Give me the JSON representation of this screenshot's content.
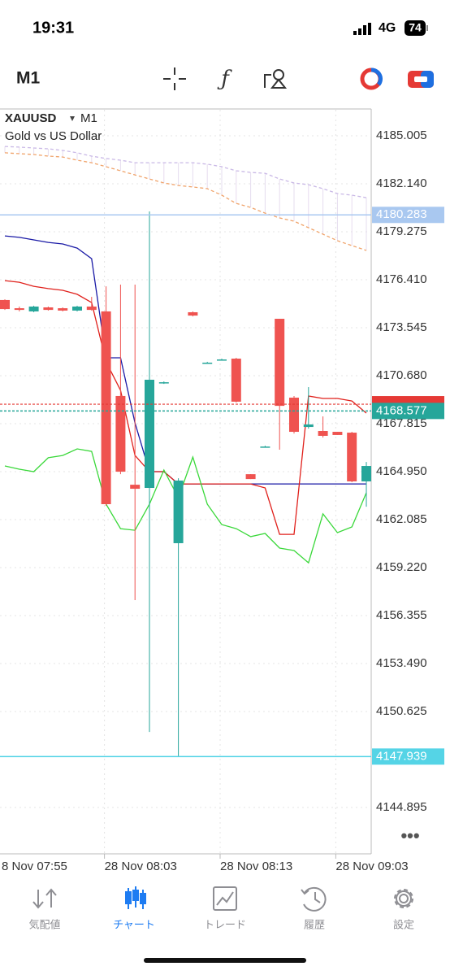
{
  "status_bar": {
    "time": "19:31",
    "network": "4G",
    "battery": "74"
  },
  "toolbar": {
    "timeframe": "M1"
  },
  "chart_data": {
    "type": "candlestick",
    "symbol": "XAUUSD",
    "timeframe": "M1",
    "description": "Gold vs US Dollar",
    "categories": [
      null,
      null,
      null,
      null,
      null,
      null,
      null,
      "28 Nov 08:03",
      null,
      null,
      null,
      null,
      null,
      null,
      null,
      "28 Nov 08:13",
      null,
      null,
      null,
      null,
      null,
      null,
      null,
      "28 Nov 09:03",
      null,
      null
    ],
    "offscreen_label": "8 Nov 07:55",
    "open": [
      4175.2,
      4174.71,
      4174.52,
      4174.76,
      4174.71,
      4174.57,
      4174.81,
      4174.52,
      4169.47,
      4164.17,
      4163.98,
      4170.24,
      4160.68,
      4174.47,
      4171.46,
      4171.6,
      4171.7,
      4164.8,
      4166.41,
      4174.08,
      4169.37,
      4167.62,
      4167.38,
      4167.33,
      4167.28,
      4164.37
    ],
    "high": [
      4175.24,
      4174.81,
      4174.86,
      4174.81,
      4174.76,
      4174.86,
      4175.39,
      4176.02,
      4176.12,
      4176.12,
      4180.49,
      4170.34,
      4164.56,
      4174.52,
      4171.51,
      4171.7,
      4171.75,
      4164.8,
      4166.5,
      4174.08,
      4169.47,
      4170.0,
      4168.25,
      4167.33,
      4167.33,
      4165.53
    ],
    "low": [
      4174.61,
      4174.52,
      4174.47,
      4174.57,
      4174.52,
      4174.52,
      4174.57,
      4162.91,
      4164.8,
      4157.28,
      4149.41,
      4170.19,
      4147.95,
      4174.22,
      4171.41,
      4171.6,
      4169.08,
      4164.51,
      4166.41,
      4166.26,
      4167.23,
      4167.52,
      4166.99,
      4167.14,
      4164.32,
      4162.86
    ],
    "close": [
      4174.66,
      4174.61,
      4174.81,
      4174.61,
      4174.57,
      4174.81,
      4174.61,
      4163.01,
      4164.95,
      4163.93,
      4170.44,
      4170.29,
      4164.42,
      4174.27,
      4171.46,
      4171.65,
      4169.13,
      4164.51,
      4166.45,
      4168.88,
      4167.33,
      4167.77,
      4167.09,
      4167.14,
      4164.37,
      4165.29
    ],
    "up_color": "#26a69a",
    "down_color": "#ef5350",
    "lines": [
      {
        "color": "#f0a36a",
        "dash": true,
        "values": [
          4183.99,
          4183.94,
          4183.89,
          4183.79,
          4183.74,
          4183.55,
          4183.4,
          4183.16,
          4182.92,
          4182.67,
          4182.43,
          4182.19,
          4182.04,
          4181.95,
          4181.85,
          4181.46,
          4180.97,
          4180.73,
          4180.39,
          4180.1,
          4179.91,
          4179.52,
          4179.13,
          4178.74,
          4178.45,
          4178.16
        ]
      },
      {
        "color": "#c9b8e6",
        "dash": true,
        "values": [
          4184.37,
          4184.33,
          4184.28,
          4184.23,
          4184.13,
          4183.99,
          4183.79,
          4183.65,
          4183.55,
          4183.4,
          4183.4,
          4183.4,
          4183.4,
          4183.4,
          4183.31,
          4183.16,
          4182.92,
          4182.82,
          4182.77,
          4182.43,
          4182.19,
          4182.09,
          4181.85,
          4181.56,
          4181.46,
          4181.31
        ]
      },
      {
        "color": "#1a1aa6",
        "dash": false,
        "values": [
          4179.03,
          4178.94,
          4178.79,
          4178.64,
          4178.55,
          4178.3,
          4177.67,
          4171.75,
          4171.75,
          4167.86,
          4164.95,
          4164.95,
          4164.22,
          4164.22,
          4164.22,
          4164.22,
          4164.22,
          4164.22,
          4164.22,
          4164.22,
          4164.22,
          4164.22,
          4164.22,
          4164.22,
          4164.22,
          4164.22
        ]
      },
      {
        "color": "#e0201b",
        "dash": false,
        "values": [
          4176.36,
          4176.26,
          4176.02,
          4175.88,
          4175.78,
          4175.54,
          4175.05,
          4171.51,
          4169.81,
          4165.92,
          4164.95,
          4164.95,
          4164.22,
          4164.22,
          4164.22,
          4164.22,
          4164.22,
          4164.22,
          4163.98,
          4161.21,
          4161.21,
          4169.47,
          4169.32,
          4169.32,
          4169.17,
          4168.45
        ]
      },
      {
        "color": "#3ad83a",
        "dash": false,
        "values": [
          4165.29,
          4165.1,
          4164.95,
          4165.78,
          4165.92,
          4166.31,
          4166.16,
          4163.01,
          4161.55,
          4161.45,
          4163.01,
          4165.05,
          4163.4,
          4165.82,
          4163.01,
          4161.79,
          4161.55,
          4161.07,
          4161.26,
          4160.39,
          4160.24,
          4159.51,
          4162.43,
          4161.31,
          4161.65,
          4163.69
        ]
      }
    ],
    "ylim": [
      4142.13,
      4186.56
    ],
    "yticks": [
      4185.005,
      {
        "value": 4182.14,
        "label": "4182.140"
      },
      4179.275,
      {
        "value": 4176.41,
        "label": "4176.410"
      },
      4173.545,
      {
        "value": 4170.68,
        "label": "4170.680"
      },
      4167.815,
      {
        "value": 4164.95,
        "label": "4164.950"
      },
      4162.085,
      {
        "value": 4159.22,
        "label": "4159.220"
      },
      4156.355,
      {
        "value": 4153.49,
        "label": "4153.490"
      },
      4150.625,
      4144.895
    ],
    "grid": true,
    "ask_line": {
      "value": 4168.98,
      "color": "#e53935"
    },
    "price_lines": [
      {
        "value": 4180.283,
        "color": "#a9c8f0",
        "dash": false
      },
      {
        "value": 4168.577,
        "color": "#26a69a",
        "dash": true
      },
      {
        "value": 4147.939,
        "color": "#55d4e6",
        "dash": false
      }
    ]
  },
  "tab_bar": {
    "tabs": [
      "気配値",
      "チャート",
      "トレード",
      "履歴",
      "設定"
    ],
    "active": 1
  }
}
